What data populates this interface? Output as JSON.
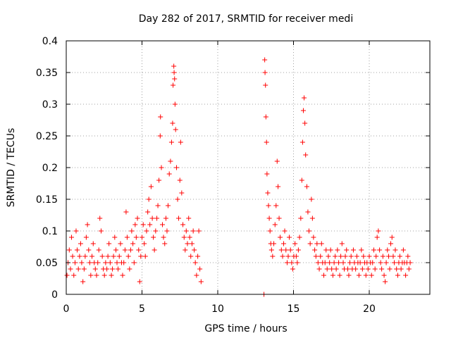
{
  "chart_data": {
    "type": "scatter",
    "title": "Day 282 of 2017, SRMTID for receiver medi",
    "xlabel": "GPS time / hours",
    "ylabel": "SRMTID / TECUs",
    "xlim": [
      0,
      24
    ],
    "ylim": [
      0,
      0.4
    ],
    "grid": true,
    "marker": "+",
    "colors": {
      "points": "#ff0000",
      "axes": "#000000",
      "grid": "#a0a0a0"
    },
    "xticks": [
      0,
      5,
      10,
      15,
      20
    ],
    "xtick_labels": [
      "0",
      "5",
      "10",
      "15",
      "20"
    ],
    "yticks": [
      0,
      0.05,
      0.1,
      0.15,
      0.2,
      0.25,
      0.3,
      0.35,
      0.4
    ],
    "ytick_labels": [
      "0",
      "0.05",
      "0.1",
      "0.15",
      "0.2",
      "0.25",
      "0.3",
      "0.35",
      "0.4"
    ],
    "series": [
      {
        "name": "SRMTID",
        "points": [
          [
            0.05,
            0.03
          ],
          [
            0.12,
            0.05
          ],
          [
            0.2,
            0.07
          ],
          [
            0.28,
            0.04
          ],
          [
            0.35,
            0.09
          ],
          [
            0.42,
            0.06
          ],
          [
            0.5,
            0.03
          ],
          [
            0.58,
            0.05
          ],
          [
            0.65,
            0.1
          ],
          [
            0.72,
            0.07
          ],
          [
            0.8,
            0.04
          ],
          [
            0.88,
            0.06
          ],
          [
            0.95,
            0.08
          ],
          [
            1.02,
            0.05
          ],
          [
            1.1,
            0.02
          ],
          [
            1.18,
            0.04
          ],
          [
            1.25,
            0.06
          ],
          [
            1.32,
            0.09
          ],
          [
            1.4,
            0.11
          ],
          [
            1.48,
            0.07
          ],
          [
            1.55,
            0.05
          ],
          [
            1.62,
            0.03
          ],
          [
            1.7,
            0.06
          ],
          [
            1.78,
            0.08
          ],
          [
            1.85,
            0.05
          ],
          [
            1.92,
            0.04
          ],
          [
            2.0,
            0.03
          ],
          [
            2.08,
            0.05
          ],
          [
            2.15,
            0.07
          ],
          [
            2.22,
            0.12
          ],
          [
            2.3,
            0.1
          ],
          [
            2.38,
            0.06
          ],
          [
            2.45,
            0.04
          ],
          [
            2.52,
            0.03
          ],
          [
            2.6,
            0.05
          ],
          [
            2.68,
            0.04
          ],
          [
            2.75,
            0.06
          ],
          [
            2.82,
            0.08
          ],
          [
            2.9,
            0.05
          ],
          [
            2.98,
            0.03
          ],
          [
            3.05,
            0.04
          ],
          [
            3.12,
            0.06
          ],
          [
            3.2,
            0.09
          ],
          [
            3.28,
            0.07
          ],
          [
            3.35,
            0.05
          ],
          [
            3.42,
            0.04
          ],
          [
            3.5,
            0.06
          ],
          [
            3.58,
            0.08
          ],
          [
            3.65,
            0.05
          ],
          [
            3.72,
            0.03
          ],
          [
            3.8,
            0.05
          ],
          [
            3.88,
            0.07
          ],
          [
            3.95,
            0.13
          ],
          [
            4.02,
            0.09
          ],
          [
            4.1,
            0.06
          ],
          [
            4.18,
            0.04
          ],
          [
            4.25,
            0.07
          ],
          [
            4.32,
            0.1
          ],
          [
            4.4,
            0.08
          ],
          [
            4.48,
            0.05
          ],
          [
            4.55,
            0.11
          ],
          [
            4.62,
            0.09
          ],
          [
            4.7,
            0.12
          ],
          [
            4.78,
            0.07
          ],
          [
            4.85,
            0.02
          ],
          [
            4.92,
            0.06
          ],
          [
            5.0,
            0.09
          ],
          [
            5.08,
            0.11
          ],
          [
            5.15,
            0.08
          ],
          [
            5.22,
            0.06
          ],
          [
            5.3,
            0.1
          ],
          [
            5.38,
            0.13
          ],
          [
            5.45,
            0.15
          ],
          [
            5.52,
            0.11
          ],
          [
            5.6,
            0.17
          ],
          [
            5.68,
            0.12
          ],
          [
            5.75,
            0.09
          ],
          [
            5.82,
            0.07
          ],
          [
            5.9,
            0.1
          ],
          [
            5.98,
            0.12
          ],
          [
            6.05,
            0.14
          ],
          [
            6.12,
            0.18
          ],
          [
            6.2,
            0.25
          ],
          [
            6.22,
            0.28
          ],
          [
            6.28,
            0.2
          ],
          [
            6.35,
            0.11
          ],
          [
            6.42,
            0.09
          ],
          [
            6.5,
            0.08
          ],
          [
            6.58,
            0.12
          ],
          [
            6.65,
            0.1
          ],
          [
            6.72,
            0.14
          ],
          [
            6.8,
            0.19
          ],
          [
            6.88,
            0.21
          ],
          [
            6.95,
            0.24
          ],
          [
            7.02,
            0.27
          ],
          [
            7.05,
            0.33
          ],
          [
            7.1,
            0.36
          ],
          [
            7.12,
            0.35
          ],
          [
            7.15,
            0.34
          ],
          [
            7.18,
            0.3
          ],
          [
            7.22,
            0.26
          ],
          [
            7.28,
            0.2
          ],
          [
            7.35,
            0.15
          ],
          [
            7.42,
            0.12
          ],
          [
            7.5,
            0.18
          ],
          [
            7.55,
            0.24
          ],
          [
            7.62,
            0.16
          ],
          [
            7.7,
            0.11
          ],
          [
            7.78,
            0.09
          ],
          [
            7.85,
            0.07
          ],
          [
            7.92,
            0.1
          ],
          [
            8.0,
            0.08
          ],
          [
            8.08,
            0.12
          ],
          [
            8.15,
            0.09
          ],
          [
            8.22,
            0.06
          ],
          [
            8.3,
            0.08
          ],
          [
            8.38,
            0.1
          ],
          [
            8.45,
            0.07
          ],
          [
            8.52,
            0.05
          ],
          [
            8.6,
            0.03
          ],
          [
            8.68,
            0.06
          ],
          [
            8.75,
            0.1
          ],
          [
            8.82,
            0.04
          ],
          [
            8.9,
            0.02
          ],
          [
            13.05,
            0.0
          ],
          [
            13.1,
            0.37
          ],
          [
            13.12,
            0.35
          ],
          [
            13.15,
            0.33
          ],
          [
            13.18,
            0.28
          ],
          [
            13.22,
            0.24
          ],
          [
            13.25,
            0.19
          ],
          [
            13.3,
            0.16
          ],
          [
            13.35,
            0.14
          ],
          [
            13.4,
            0.12
          ],
          [
            13.45,
            0.1
          ],
          [
            13.5,
            0.08
          ],
          [
            13.55,
            0.07
          ],
          [
            13.62,
            0.06
          ],
          [
            13.7,
            0.08
          ],
          [
            13.78,
            0.11
          ],
          [
            13.85,
            0.14
          ],
          [
            13.92,
            0.21
          ],
          [
            13.98,
            0.17
          ],
          [
            14.05,
            0.12
          ],
          [
            14.12,
            0.09
          ],
          [
            14.2,
            0.07
          ],
          [
            14.28,
            0.06
          ],
          [
            14.35,
            0.08
          ],
          [
            14.42,
            0.1
          ],
          [
            14.5,
            0.07
          ],
          [
            14.58,
            0.05
          ],
          [
            14.65,
            0.06
          ],
          [
            14.72,
            0.09
          ],
          [
            14.8,
            0.07
          ],
          [
            14.88,
            0.05
          ],
          [
            14.95,
            0.04
          ],
          [
            15.02,
            0.06
          ],
          [
            15.1,
            0.08
          ],
          [
            15.18,
            0.06
          ],
          [
            15.25,
            0.05
          ],
          [
            15.32,
            0.07
          ],
          [
            15.4,
            0.09
          ],
          [
            15.48,
            0.12
          ],
          [
            15.55,
            0.18
          ],
          [
            15.6,
            0.24
          ],
          [
            15.65,
            0.29
          ],
          [
            15.7,
            0.31
          ],
          [
            15.75,
            0.27
          ],
          [
            15.8,
            0.22
          ],
          [
            15.88,
            0.17
          ],
          [
            15.95,
            0.13
          ],
          [
            16.02,
            0.1
          ],
          [
            16.1,
            0.08
          ],
          [
            16.18,
            0.15
          ],
          [
            16.25,
            0.12
          ],
          [
            16.32,
            0.09
          ],
          [
            16.4,
            0.07
          ],
          [
            16.48,
            0.06
          ],
          [
            16.55,
            0.08
          ],
          [
            16.62,
            0.05
          ],
          [
            16.7,
            0.04
          ],
          [
            16.78,
            0.06
          ],
          [
            16.85,
            0.08
          ],
          [
            16.92,
            0.05
          ],
          [
            17.0,
            0.03
          ],
          [
            17.08,
            0.05
          ],
          [
            17.15,
            0.07
          ],
          [
            17.22,
            0.04
          ],
          [
            17.3,
            0.06
          ],
          [
            17.38,
            0.05
          ],
          [
            17.45,
            0.07
          ],
          [
            17.52,
            0.04
          ],
          [
            17.6,
            0.03
          ],
          [
            17.68,
            0.05
          ],
          [
            17.75,
            0.06
          ],
          [
            17.82,
            0.04
          ],
          [
            17.9,
            0.07
          ],
          [
            17.98,
            0.05
          ],
          [
            18.05,
            0.03
          ],
          [
            18.12,
            0.06
          ],
          [
            18.2,
            0.08
          ],
          [
            18.28,
            0.05
          ],
          [
            18.35,
            0.04
          ],
          [
            18.42,
            0.06
          ],
          [
            18.5,
            0.07
          ],
          [
            18.58,
            0.04
          ],
          [
            18.65,
            0.03
          ],
          [
            18.72,
            0.05
          ],
          [
            18.8,
            0.06
          ],
          [
            18.88,
            0.04
          ],
          [
            18.95,
            0.07
          ],
          [
            19.02,
            0.05
          ],
          [
            19.1,
            0.04
          ],
          [
            19.18,
            0.06
          ],
          [
            19.25,
            0.05
          ],
          [
            19.32,
            0.03
          ],
          [
            19.4,
            0.05
          ],
          [
            19.48,
            0.07
          ],
          [
            19.55,
            0.04
          ],
          [
            19.62,
            0.06
          ],
          [
            19.7,
            0.05
          ],
          [
            19.78,
            0.03
          ],
          [
            19.85,
            0.05
          ],
          [
            19.92,
            0.04
          ],
          [
            20.0,
            0.06
          ],
          [
            20.08,
            0.05
          ],
          [
            20.15,
            0.03
          ],
          [
            20.22,
            0.05
          ],
          [
            20.3,
            0.07
          ],
          [
            20.38,
            0.04
          ],
          [
            20.45,
            0.06
          ],
          [
            20.52,
            0.09
          ],
          [
            20.6,
            0.1
          ],
          [
            20.68,
            0.07
          ],
          [
            20.75,
            0.05
          ],
          [
            20.82,
            0.04
          ],
          [
            20.9,
            0.06
          ],
          [
            20.98,
            0.03
          ],
          [
            21.05,
            0.02
          ],
          [
            21.12,
            0.05
          ],
          [
            21.2,
            0.07
          ],
          [
            21.28,
            0.06
          ],
          [
            21.35,
            0.04
          ],
          [
            21.42,
            0.08
          ],
          [
            21.5,
            0.09
          ],
          [
            21.58,
            0.06
          ],
          [
            21.65,
            0.05
          ],
          [
            21.72,
            0.07
          ],
          [
            21.8,
            0.04
          ],
          [
            21.88,
            0.03
          ],
          [
            21.95,
            0.05
          ],
          [
            22.02,
            0.06
          ],
          [
            22.1,
            0.04
          ],
          [
            22.18,
            0.05
          ],
          [
            22.25,
            0.07
          ],
          [
            22.32,
            0.05
          ],
          [
            22.4,
            0.03
          ],
          [
            22.48,
            0.05
          ],
          [
            22.55,
            0.06
          ],
          [
            22.62,
            0.04
          ],
          [
            22.7,
            0.05
          ]
        ]
      }
    ]
  }
}
